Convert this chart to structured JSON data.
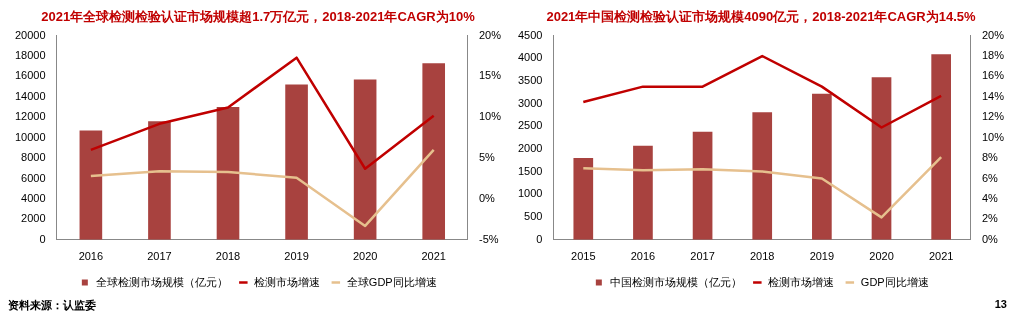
{
  "chart_data": [
    {
      "type": "bar",
      "title": "2021年全球检测检验认证市场规模超1.7万亿元，2018-2021年CAGR为10%",
      "categories": [
        "2016",
        "2017",
        "2018",
        "2019",
        "2020",
        "2021"
      ],
      "series": [
        {
          "name": "全球检测市场规模（亿元）",
          "color": "#a8423f",
          "values": [
            10700,
            11600,
            13000,
            15200,
            15700,
            17300
          ]
        },
        {
          "name": "检测市场增速",
          "type": "line",
          "axis": "y2",
          "color": "#c00000",
          "values": [
            6.0,
            9.2,
            11.2,
            17.3,
            3.7,
            10.2
          ]
        },
        {
          "name": "全球GDP同比增速",
          "type": "line",
          "axis": "y2",
          "color": "#e6c08e",
          "values": [
            2.8,
            3.4,
            3.3,
            2.6,
            -3.3,
            6.0
          ]
        }
      ],
      "ylim": [
        0,
        20000
      ],
      "yticks": [
        0,
        2000,
        4000,
        6000,
        8000,
        10000,
        12000,
        14000,
        16000,
        18000,
        20000
      ],
      "y2lim": [
        -5,
        20
      ],
      "y2ticks": [
        {
          "value": -5,
          "label": "-5%"
        },
        {
          "value": 0,
          "label": "0%"
        },
        {
          "value": 5,
          "label": "5%"
        },
        {
          "value": 10,
          "label": "10%"
        },
        {
          "value": 15,
          "label": "15%"
        },
        {
          "value": 20,
          "label": "20%"
        }
      ],
      "grid": false,
      "legend": "bottom",
      "marker": "none",
      "line_style": "solid",
      "annotations": [
        "资料来源：认监委"
      ]
    },
    {
      "type": "bar",
      "title": "2021年中国检测检验认证市场规模4090亿元，2018-2021年CAGR为14.5%",
      "categories": [
        "2015",
        "2016",
        "2017",
        "2018",
        "2019",
        "2020",
        "2021"
      ],
      "series": [
        {
          "name": "中国检测市场规模（亿元）",
          "color": "#a8423f",
          "values": [
            1800,
            2070,
            2380,
            2810,
            3220,
            3580,
            4090
          ]
        },
        {
          "name": "检测市场增速",
          "type": "line",
          "axis": "y2",
          "color": "#c00000",
          "values": [
            13.5,
            15.0,
            15.0,
            18.0,
            15.0,
            11.0,
            14.1
          ]
        },
        {
          "name": "GDP同比增速",
          "type": "line",
          "axis": "y2",
          "color": "#e6c08e",
          "values": [
            7.0,
            6.8,
            6.9,
            6.7,
            6.0,
            2.2,
            8.1
          ]
        }
      ],
      "ylim": [
        0,
        4500
      ],
      "yticks": [
        0,
        500,
        1000,
        1500,
        2000,
        2500,
        3000,
        3500,
        4000,
        4500
      ],
      "y2lim": [
        0,
        20
      ],
      "y2ticks": [
        {
          "value": 0,
          "label": "0%"
        },
        {
          "value": 2,
          "label": "2%"
        },
        {
          "value": 4,
          "label": "4%"
        },
        {
          "value": 6,
          "label": "6%"
        },
        {
          "value": 8,
          "label": "8%"
        },
        {
          "value": 10,
          "label": "10%"
        },
        {
          "value": 12,
          "label": "12%"
        },
        {
          "value": 14,
          "label": "14%"
        },
        {
          "value": 16,
          "label": "16%"
        },
        {
          "value": 18,
          "label": "18%"
        },
        {
          "value": 20,
          "label": "20%"
        }
      ],
      "grid": false,
      "legend": "bottom",
      "marker": "none",
      "line_style": "solid",
      "annotations": [
        "13"
      ]
    }
  ]
}
